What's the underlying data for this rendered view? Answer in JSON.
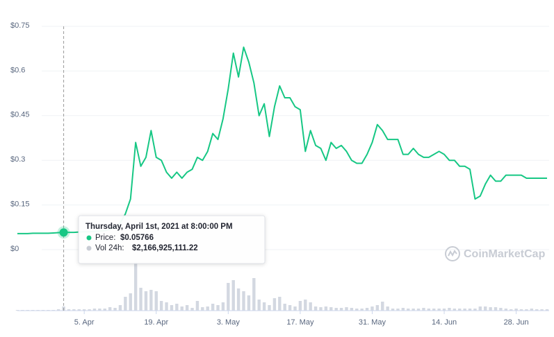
{
  "chart_data": {
    "type": "line",
    "x": [
      "2021-03-23",
      "2021-03-24",
      "2021-03-25",
      "2021-03-26",
      "2021-03-27",
      "2021-03-28",
      "2021-03-29",
      "2021-03-30",
      "2021-03-31",
      "2021-04-01",
      "2021-04-02",
      "2021-04-03",
      "2021-04-04",
      "2021-04-05",
      "2021-04-06",
      "2021-04-07",
      "2021-04-08",
      "2021-04-09",
      "2021-04-10",
      "2021-04-11",
      "2021-04-12",
      "2021-04-13",
      "2021-04-14",
      "2021-04-15",
      "2021-04-16",
      "2021-04-17",
      "2021-04-18",
      "2021-04-19",
      "2021-04-20",
      "2021-04-21",
      "2021-04-22",
      "2021-04-23",
      "2021-04-24",
      "2021-04-25",
      "2021-04-26",
      "2021-04-27",
      "2021-04-28",
      "2021-04-29",
      "2021-04-30",
      "2021-05-01",
      "2021-05-02",
      "2021-05-03",
      "2021-05-04",
      "2021-05-05",
      "2021-05-06",
      "2021-05-07",
      "2021-05-08",
      "2021-05-09",
      "2021-05-10",
      "2021-05-11",
      "2021-05-12",
      "2021-05-13",
      "2021-05-14",
      "2021-05-15",
      "2021-05-16",
      "2021-05-17",
      "2021-05-18",
      "2021-05-19",
      "2021-05-20",
      "2021-05-21",
      "2021-05-22",
      "2021-05-23",
      "2021-05-24",
      "2021-05-25",
      "2021-05-26",
      "2021-05-27",
      "2021-05-28",
      "2021-05-29",
      "2021-05-30",
      "2021-05-31",
      "2021-06-01",
      "2021-06-02",
      "2021-06-03",
      "2021-06-04",
      "2021-06-05",
      "2021-06-06",
      "2021-06-07",
      "2021-06-08",
      "2021-06-09",
      "2021-06-10",
      "2021-06-11",
      "2021-06-12",
      "2021-06-13",
      "2021-06-14",
      "2021-06-15",
      "2021-06-16",
      "2021-06-17",
      "2021-06-18",
      "2021-06-19",
      "2021-06-20",
      "2021-06-21",
      "2021-06-22",
      "2021-06-23",
      "2021-06-24",
      "2021-06-25",
      "2021-06-26",
      "2021-06-27",
      "2021-06-28",
      "2021-06-29",
      "2021-06-30",
      "2021-07-01",
      "2021-07-02",
      "2021-07-03",
      "2021-07-04"
    ],
    "series": [
      {
        "name": "Price",
        "color": "#16c784",
        "values": [
          0.054,
          0.054,
          0.054,
          0.055,
          0.055,
          0.055,
          0.055,
          0.056,
          0.057,
          0.05766,
          0.058,
          0.058,
          0.059,
          0.06,
          0.06,
          0.061,
          0.062,
          0.064,
          0.068,
          0.075,
          0.09,
          0.12,
          0.17,
          0.36,
          0.28,
          0.31,
          0.4,
          0.31,
          0.3,
          0.26,
          0.24,
          0.26,
          0.24,
          0.26,
          0.27,
          0.31,
          0.3,
          0.33,
          0.39,
          0.37,
          0.44,
          0.54,
          0.66,
          0.58,
          0.68,
          0.63,
          0.56,
          0.45,
          0.49,
          0.38,
          0.48,
          0.55,
          0.51,
          0.51,
          0.48,
          0.47,
          0.33,
          0.4,
          0.35,
          0.34,
          0.3,
          0.36,
          0.34,
          0.35,
          0.33,
          0.3,
          0.29,
          0.29,
          0.32,
          0.36,
          0.42,
          0.4,
          0.37,
          0.37,
          0.37,
          0.32,
          0.32,
          0.34,
          0.32,
          0.31,
          0.31,
          0.32,
          0.33,
          0.32,
          0.3,
          0.3,
          0.28,
          0.28,
          0.27,
          0.17,
          0.18,
          0.22,
          0.25,
          0.23,
          0.23,
          0.25,
          0.25,
          0.25,
          0.25,
          0.24,
          0.24,
          0.24,
          0.24,
          0.24
        ]
      },
      {
        "name": "Vol 24h",
        "color": "#d3d8e1",
        "axis": "y2",
        "values": [
          360000000.0,
          360000000.0,
          360000000.0,
          360000000.0,
          360000000.0,
          360000000.0,
          360000000.0,
          360000000.0,
          720000000.0,
          2166925111.22,
          720000000.0,
          720000000.0,
          720000000.0,
          720000000.0,
          720000000.0,
          1080000000.0,
          1080000000.0,
          1080000000.0,
          1800000000.0,
          1440000000.0,
          2880000000.0,
          7200000000.0,
          9000000000.0,
          25200000000.0,
          11880000000.0,
          10080000000.0,
          10800000000.0,
          10080000000.0,
          5040000000.0,
          4320000000.0,
          2880000000.0,
          3600000000.0,
          2160000000.0,
          2880000000.0,
          1440000000.0,
          5040000000.0,
          1800000000.0,
          2160000000.0,
          3600000000.0,
          2880000000.0,
          4320000000.0,
          14400000000.0,
          15840000000.0,
          11520000000.0,
          10080000000.0,
          7920000000.0,
          16920000000.0,
          5760000000.0,
          4320000000.0,
          2880000000.0,
          6480000000.0,
          7200000000.0,
          3600000000.0,
          2880000000.0,
          2160000000.0,
          5040000000.0,
          5760000000.0,
          4320000000.0,
          2160000000.0,
          1800000000.0,
          2160000000.0,
          1800000000.0,
          1440000000.0,
          1440000000.0,
          1800000000.0,
          1440000000.0,
          1080000000.0,
          1080000000.0,
          1440000000.0,
          2160000000.0,
          2880000000.0,
          4680000000.0,
          2160000000.0,
          1080000000.0,
          1080000000.0,
          1440000000.0,
          1080000000.0,
          1080000000.0,
          1080000000.0,
          1440000000.0,
          1080000000.0,
          1080000000.0,
          1080000000.0,
          1080000000.0,
          1440000000.0,
          1080000000.0,
          1080000000.0,
          1080000000.0,
          1080000000.0,
          1080000000.0,
          2160000000.0,
          2160000000.0,
          1800000000.0,
          1800000000.0,
          1440000000.0,
          1080000000.0,
          720000000.0,
          1080000000.0,
          720000000.0,
          720000000.0,
          1080000000.0,
          720000000.0,
          720000000.0,
          720000000.0
        ]
      }
    ],
    "xlim": [
      "2021-03-23",
      "2021-07-04"
    ],
    "xticks": [
      {
        "value": "2021-04-05",
        "label": "5. Apr"
      },
      {
        "value": "2021-04-19",
        "label": "19. Apr"
      },
      {
        "value": "2021-05-03",
        "label": "3. May"
      },
      {
        "value": "2021-05-17",
        "label": "17. May"
      },
      {
        "value": "2021-05-31",
        "label": "31. May"
      },
      {
        "value": "2021-06-14",
        "label": "14. Jun"
      },
      {
        "value": "2021-06-28",
        "label": "28. Jun"
      }
    ],
    "ylim": [
      0,
      0.75
    ],
    "yticks": [
      {
        "value": 0,
        "label": "$0"
      },
      {
        "value": 0.15,
        "label": "$0.15"
      },
      {
        "value": 0.3,
        "label": "$0.3"
      },
      {
        "value": 0.45,
        "label": "$0.45"
      },
      {
        "value": 0.6,
        "label": "$0.6"
      },
      {
        "value": 0.75,
        "label": "$0.75"
      }
    ],
    "y2lim": [
      0,
      31680000000.0
    ],
    "grid": true,
    "tooltip": {
      "x": "2021-04-01",
      "title": "Thursday, April 1st, 2021 at 8:00:00 PM",
      "price_label": "Price:",
      "price": "$0.05766",
      "volume_label": "Vol 24h:",
      "volume": "$2,166,925,111.22"
    },
    "watermark": "CoinMarketCap"
  }
}
